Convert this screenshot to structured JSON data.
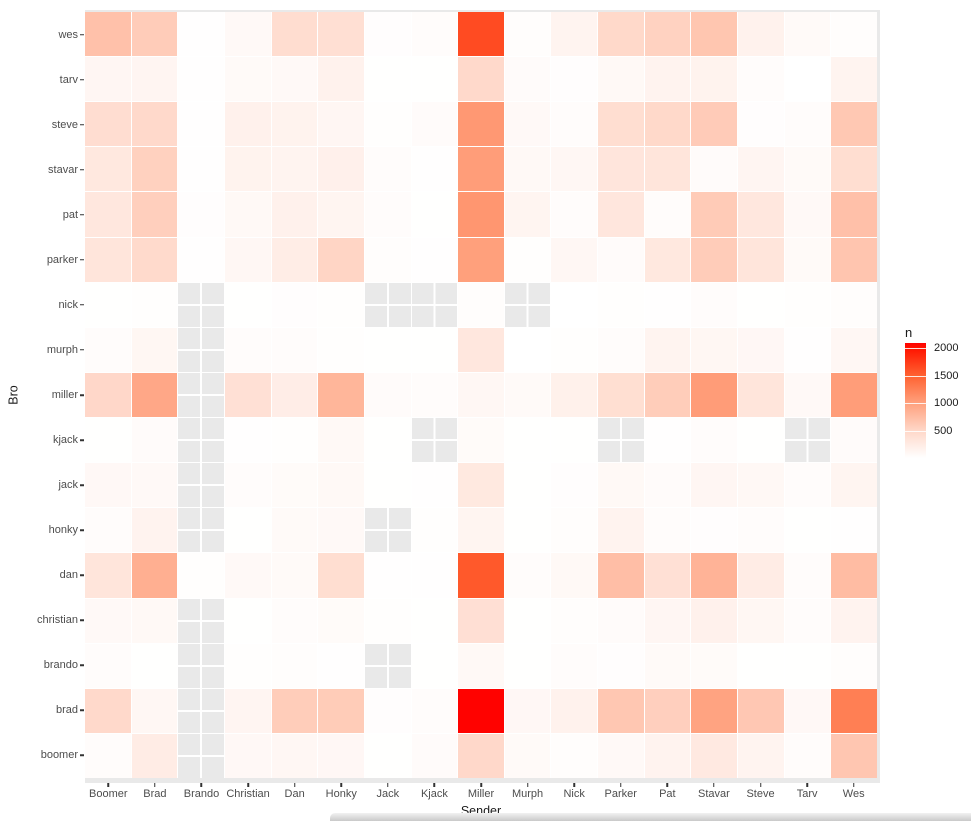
{
  "figure": {
    "xlabel": "Sender",
    "ylabel": "Bro",
    "legend": {
      "title": "n",
      "tick_values": [
        2000,
        1500,
        1000,
        500
      ],
      "scale_max": 2100
    }
  },
  "chart_data": {
    "type": "heatmap",
    "title": "",
    "xlabel": "Sender",
    "ylabel": "Bro",
    "x_categories": [
      "Boomer",
      "Brad",
      "Brando",
      "Christian",
      "Dan",
      "Honky",
      "Jack",
      "Kjack",
      "Miller",
      "Murph",
      "Nick",
      "Parker",
      "Pat",
      "Stavar",
      "Steve",
      "Tarv",
      "Wes"
    ],
    "y_categories_top_to_bottom": [
      "wes",
      "tarv",
      "steve",
      "stavar",
      "pat",
      "parker",
      "nick",
      "murph",
      "miller",
      "kjack",
      "jack",
      "honky",
      "dan",
      "christian",
      "brando",
      "brad",
      "boomer"
    ],
    "na_cells_shown_as": "gray panel with white gridline cross",
    "matrix_rows_top_to_bottom": [
      [
        700,
        600,
        10,
        70,
        430,
        400,
        20,
        40,
        1650,
        25,
        140,
        480,
        550,
        660,
        160,
        60,
        25
      ],
      [
        110,
        120,
        10,
        60,
        70,
        160,
        5,
        5,
        470,
        45,
        20,
        80,
        150,
        155,
        35,
        3,
        135
      ],
      [
        420,
        470,
        10,
        170,
        155,
        110,
        15,
        50,
        1070,
        70,
        35,
        415,
        480,
        610,
        20,
        35,
        640
      ],
      [
        290,
        560,
        10,
        155,
        140,
        185,
        35,
        10,
        1030,
        80,
        100,
        320,
        325,
        45,
        120,
        60,
        415
      ],
      [
        300,
        575,
        20,
        80,
        170,
        125,
        35,
        5,
        1090,
        125,
        35,
        310,
        35,
        615,
        300,
        75,
        710
      ],
      [
        330,
        460,
        10,
        100,
        230,
        520,
        25,
        10,
        1010,
        15,
        100,
        50,
        290,
        600,
        330,
        60,
        670
      ],
      [
        5,
        15,
        null,
        5,
        20,
        15,
        null,
        null,
        25,
        null,
        3,
        15,
        10,
        35,
        5,
        15,
        25
      ],
      [
        40,
        105,
        null,
        35,
        35,
        15,
        5,
        5,
        300,
        3,
        15,
        40,
        140,
        105,
        95,
        10,
        100
      ],
      [
        495,
        940,
        null,
        385,
        220,
        810,
        50,
        40,
        100,
        60,
        180,
        405,
        595,
        1040,
        330,
        70,
        1030
      ],
      [
        5,
        50,
        null,
        10,
        15,
        80,
        5,
        null,
        55,
        5,
        5,
        null,
        10,
        35,
        5,
        null,
        50
      ],
      [
        85,
        70,
        null,
        35,
        55,
        80,
        5,
        10,
        280,
        5,
        20,
        80,
        45,
        110,
        90,
        35,
        130
      ],
      [
        35,
        150,
        null,
        5,
        65,
        70,
        null,
        15,
        125,
        5,
        25,
        145,
        35,
        20,
        35,
        5,
        8
      ],
      [
        330,
        870,
        15,
        70,
        60,
        415,
        10,
        10,
        1560,
        40,
        80,
        730,
        385,
        830,
        235,
        40,
        750
      ],
      [
        70,
        80,
        null,
        5,
        35,
        55,
        15,
        5,
        395,
        5,
        25,
        50,
        110,
        170,
        105,
        35,
        145
      ],
      [
        35,
        5,
        null,
        15,
        25,
        10,
        null,
        5,
        80,
        5,
        35,
        20,
        65,
        55,
        5,
        5,
        25
      ],
      [
        470,
        100,
        null,
        120,
        595,
        605,
        20,
        35,
        2090,
        95,
        165,
        650,
        570,
        980,
        645,
        85,
        1270
      ],
      [
        35,
        240,
        null,
        85,
        100,
        95,
        5,
        45,
        485,
        60,
        30,
        75,
        150,
        275,
        135,
        35,
        655
      ]
    ],
    "color_scale": {
      "type": "gradient-low-white-high-red",
      "stops": [
        [
          0,
          "#FFFFFF"
        ],
        [
          500,
          "#FFD7C8"
        ],
        [
          1000,
          "#FFA17E"
        ],
        [
          1500,
          "#FF6231"
        ],
        [
          2000,
          "#FF1500"
        ],
        [
          2100,
          "#FF0000"
        ]
      ],
      "na_color": "#E9E9E9"
    },
    "legend_position": "right",
    "grid": "white gridlines on gray panel"
  }
}
